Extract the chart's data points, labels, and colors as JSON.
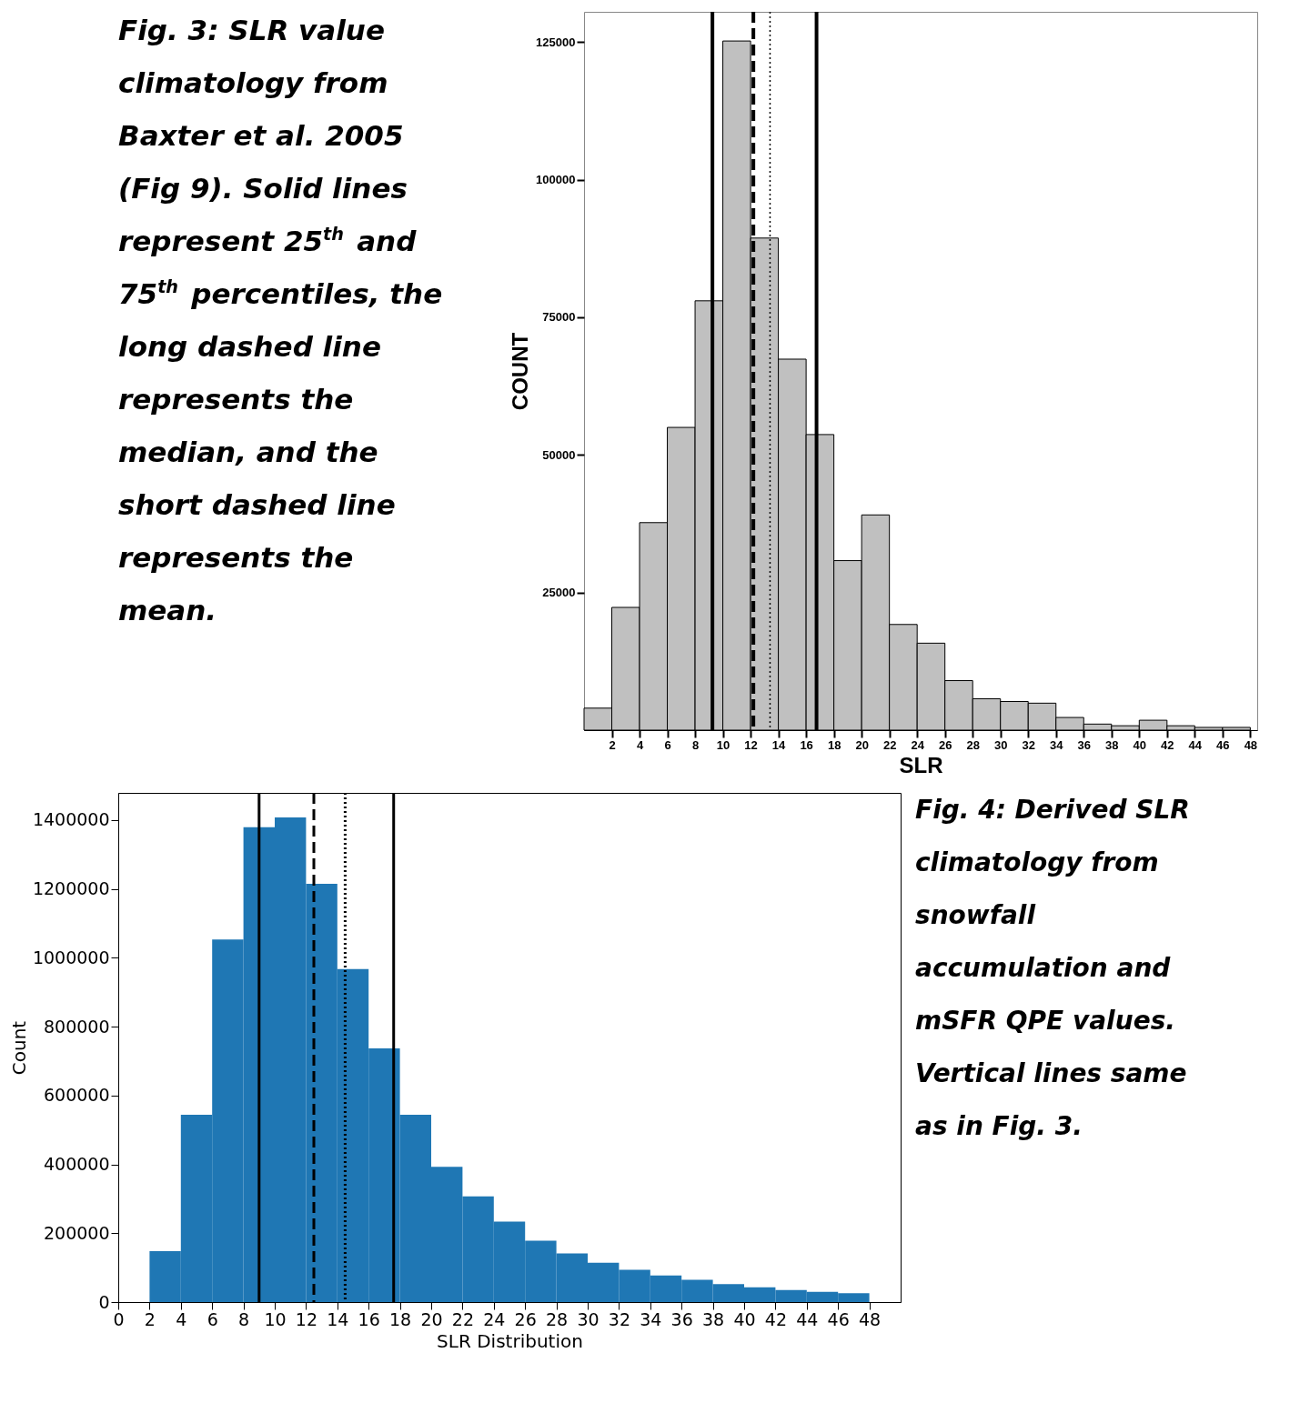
{
  "chart_data": [
    {
      "type": "histogram",
      "xlabel": "SLR",
      "ylabel": "COUNT",
      "color": "#c0c0c0",
      "bins": [
        0,
        2,
        4,
        6,
        8,
        10,
        12,
        14,
        16,
        18,
        20,
        22,
        24,
        26,
        28,
        30,
        32,
        34,
        36,
        38,
        40,
        42,
        44,
        46,
        48
      ],
      "values": [
        4000,
        22300,
        37700,
        55000,
        78000,
        125200,
        89400,
        67400,
        53700,
        30800,
        39100,
        19200,
        15800,
        9000,
        5700,
        5200,
        4900,
        2300,
        1100,
        800,
        1800,
        800,
        500,
        500
      ],
      "xlim": [
        0,
        48.5
      ],
      "xticks": [
        2,
        4,
        6,
        8,
        10,
        12,
        14,
        16,
        18,
        20,
        22,
        24,
        26,
        28,
        30,
        32,
        34,
        36,
        38,
        40,
        42,
        44,
        46,
        48
      ],
      "ylim": [
        0,
        130500
      ],
      "yticks": [
        25000,
        50000,
        75000,
        100000,
        125000
      ],
      "ref_lines": [
        {
          "axis": "x",
          "value": 9.25,
          "line_style": "solid",
          "color": "#000000"
        },
        {
          "axis": "x",
          "value": 12.2,
          "line_style": "dashed",
          "color": "#000000"
        },
        {
          "axis": "x",
          "value": 13.4,
          "line_style": "dotted",
          "color": "#000000"
        },
        {
          "axis": "x",
          "value": 16.75,
          "line_style": "solid",
          "color": "#000000"
        }
      ],
      "annotations": [
        "Fig. 3: SLR value\nclimatology from\nBaxter et al. 2005\n(Fig 9). Solid lines\nrepresent 25$^{th}$ and\n75$^{th}$ percentiles, the\nlong dashed line\nrepresents the\nmedian, and the\nshort dashed line\nrepresents the\nmean."
      ]
    },
    {
      "type": "histogram",
      "xlabel": "SLR Distribution",
      "ylabel": "Count",
      "color": "#1f77b4",
      "bins": [
        2,
        4,
        6,
        8,
        10,
        12,
        14,
        16,
        18,
        20,
        22,
        24,
        26,
        28,
        30,
        32,
        34,
        36,
        38,
        40,
        42,
        44,
        46,
        48
      ],
      "values": [
        148000,
        544000,
        1053000,
        1379000,
        1408000,
        1215000,
        967000,
        737000,
        544000,
        393000,
        307000,
        234000,
        178000,
        141000,
        114000,
        94000,
        77000,
        65000,
        52000,
        43000,
        35000,
        30000,
        26000
      ],
      "xlim": [
        0,
        50
      ],
      "xticks": [
        0,
        2,
        4,
        6,
        8,
        10,
        12,
        14,
        16,
        18,
        20,
        22,
        24,
        26,
        28,
        30,
        32,
        34,
        36,
        38,
        40,
        42,
        44,
        46,
        48
      ],
      "ylim": [
        0,
        1479000
      ],
      "yticks": [
        0,
        200000,
        400000,
        600000,
        800000,
        1000000,
        1200000,
        1400000
      ],
      "ref_lines": [
        {
          "axis": "x",
          "value": 9.0,
          "line_style": "solid",
          "color": "#000000"
        },
        {
          "axis": "x",
          "value": 12.5,
          "line_style": "dashed",
          "color": "#000000"
        },
        {
          "axis": "x",
          "value": 14.5,
          "line_style": "dotted",
          "color": "#000000"
        },
        {
          "axis": "x",
          "value": 17.6,
          "line_style": "solid",
          "color": "#000000"
        }
      ],
      "annotations": [
        "Fig. 4: Derived SLR\nclimatology from\nsnowfall\naccumulation and\nmSFR QPE values.\nVertical lines same\nas in Fig. 3."
      ]
    }
  ]
}
